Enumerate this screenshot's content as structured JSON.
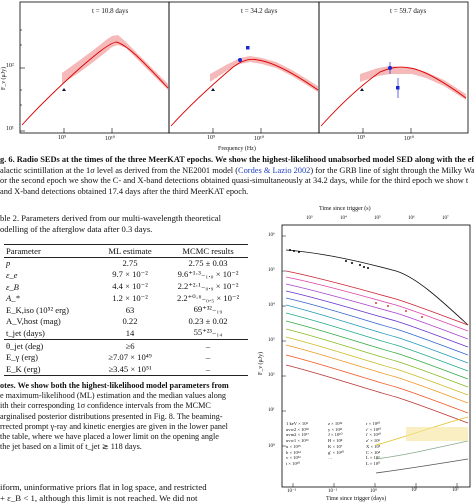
{
  "sed_figure": {
    "panels": [
      {
        "label": "t = 10.8 days"
      },
      {
        "label": "t = 34.2 days"
      },
      {
        "label": "t = 59.7 days"
      }
    ],
    "ylabel": "F_ν (μJy)",
    "xlabel": "Frequency (Hz)",
    "y_ticks": [
      "10²",
      "10¹"
    ],
    "x_ticks": [
      "10⁹",
      "10¹⁰",
      "10¹¹"
    ]
  },
  "fig6_caption": {
    "lines": [
      "g. 6. Radio SEDs at the times of the three MeerKAT epochs. We show the highest-likelihood unabsorbed model SED along with the effects",
      "alactic scintillation at the 1σ level as derived from the NE2001 model (",
      "Cordes & Lazio 2002",
      ") for the GRB line of sight through the Milky Wa",
      "or the second epoch we show the C- and X-band detections obtained quasi-simultaneously at 34.2 days, while for the third epoch we show t",
      "and X-band detections obtained 17.4 days after the third MeerKAT epoch."
    ]
  },
  "table2": {
    "caption_line1": "ble 2. Parameters derived from our multi-wavelength theoretical",
    "caption_line2": "odelling of the afterglow data after 0.3 days.",
    "headers": [
      "Parameter",
      "ML estimate",
      "MCMC results"
    ],
    "rows": [
      [
        "p",
        "2.75",
        "2.75 ± 0.03"
      ],
      [
        "ε_e",
        "9.7 × 10⁻²",
        "9.6⁺¹·³₋₁.₀ × 10⁻²"
      ],
      [
        "ε_B",
        "4.4 × 10⁻²",
        "2.2⁺²·¹₋₀.₉ × 10⁻²"
      ],
      [
        "A_*",
        "1.2 × 10⁻²",
        "2.2⁺⁰·⁶₋₀.₅ × 10⁻²"
      ],
      [
        "E_K,iso (10⁵² erg)",
        "63",
        "69⁺³²₋₁₉"
      ],
      [
        "A_V,host (mag)",
        "0.22",
        "0.23 ± 0.02"
      ],
      [
        "t_jet (days)",
        "14",
        "55⁺²³₋₁₄"
      ],
      [
        "θ_jet (deg)",
        "≥6",
        "–"
      ],
      [
        "E_γ (erg)",
        "≥7.07 × 10⁴⁹",
        "–"
      ],
      [
        "E_K (erg)",
        "≥3.45 × 10⁵¹",
        "–"
      ]
    ]
  },
  "notes": {
    "lines": [
      "otes. We show both the highest-likelihood model parameters from",
      "e maximum-likelihood (ML) estimation and the median values along",
      "ith their corresponding 1σ confidence intervals from the MCMC",
      "arginalised posterior distributions presented in Fig. 8. The beaming-",
      "rrected prompt γ-ray and kinetic energies are given in the lower panel",
      "the table, where we have placed a lower limit on the opening angle",
      "the jet based on a limit of t_jet ≳ 118 days."
    ],
    "body_line1": "iform, uninformative priors flat in log space, and restricted",
    "body_line2": "+ ε_B < 1, although this limit is not reached. We did not"
  },
  "lightcurve_figure": {
    "top_axis_label": "Time since trigger (s)",
    "top_ticks": [
      "10³",
      "10⁴",
      "10⁵",
      "10⁶",
      "10⁷"
    ],
    "ylabel": "F_ν (μJy)",
    "y_ticks": [
      "10⁶",
      "10⁵",
      "10⁴",
      "10³",
      "10²",
      "10¹",
      "10⁰"
    ],
    "bottom_ticks": [
      "10⁻²",
      "10⁻¹",
      "10⁰",
      "10¹",
      "10²"
    ],
    "xlabel": "Time since trigger (days)",
    "legend": [
      [
        "1 keV × 10³",
        "z × 10¹²",
        "r × 10¹⁰"
      ],
      [
        "uvw2 × 10¹⁸",
        "y × 10¹¹",
        "r′ × 10¹⁰"
      ],
      [
        "uvm2 × 10¹⁷",
        "J × 10¹⁰",
        "i′ × 10¹⁰"
      ],
      [
        "uvw1 × 10¹⁶",
        "H × 10⁸",
        "z′ × 10⁶"
      ],
      [
        "u × 10¹⁵",
        "K × 10⁷",
        "X × 10⁵"
      ],
      [
        "b × 10¹⁴",
        "g′ × 10¹⁰",
        "C × 10⁴"
      ],
      [
        "v × 10¹³",
        "…",
        "L × 10³"
      ],
      [
        "i × 10¹⁰",
        "",
        "L × 10⁰"
      ]
    ]
  }
}
